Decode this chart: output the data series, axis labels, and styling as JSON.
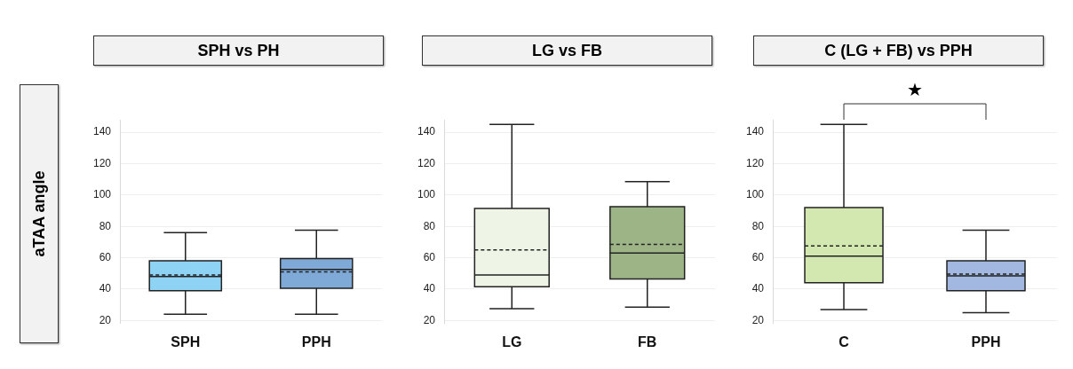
{
  "chart_data": [
    {
      "type": "box",
      "title": "SPH vs PH",
      "ylabel": "aTAA angle",
      "categories": [
        "SPH",
        "PPH"
      ],
      "colors": [
        "#8fd3f4",
        "#7fa9d6"
      ],
      "ylim": [
        18,
        148
      ],
      "yticks": [
        20,
        40,
        60,
        80,
        100,
        120,
        140
      ],
      "grid": "y",
      "boxes": [
        {
          "low": 24,
          "q1": 39,
          "median": 48,
          "q3": 58,
          "high": 76,
          "mean": 49
        },
        {
          "low": 24,
          "q1": 40.5,
          "median": 52.5,
          "q3": 59.5,
          "high": 77.5,
          "mean": 51
        }
      ]
    },
    {
      "type": "box",
      "title": "LG vs FB",
      "categories": [
        "LG",
        "FB"
      ],
      "colors": [
        "#eef4e6",
        "#9db486"
      ],
      "ylim": [
        18,
        148
      ],
      "yticks": [
        20,
        40,
        60,
        80,
        100,
        120,
        140
      ],
      "grid": "y",
      "boxes": [
        {
          "low": 27.5,
          "q1": 41.5,
          "median": 49,
          "q3": 91.5,
          "high": 145,
          "mean": 65
        },
        {
          "low": 28.5,
          "q1": 46.5,
          "median": 63,
          "q3": 92.5,
          "high": 108.5,
          "mean": 68.5
        }
      ]
    },
    {
      "type": "box",
      "title": "C (LG + FB) vs PPH",
      "categories": [
        "C",
        "PPH"
      ],
      "colors": [
        "#d2e8b0",
        "#a3b8e0"
      ],
      "ylim": [
        18,
        148
      ],
      "yticks": [
        20,
        40,
        60,
        80,
        100,
        120,
        140
      ],
      "grid": "y",
      "annotations": [
        "★"
      ],
      "boxes": [
        {
          "low": 27,
          "q1": 44,
          "median": 61,
          "q3": 92,
          "high": 145,
          "mean": 67.5
        },
        {
          "low": 25,
          "q1": 39,
          "median": 48.5,
          "q3": 58,
          "high": 77.5,
          "mean": 49.5
        }
      ]
    }
  ]
}
